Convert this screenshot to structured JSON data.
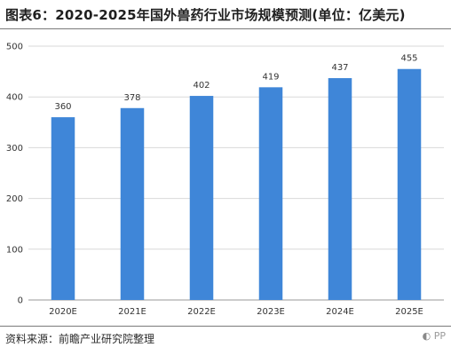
{
  "title": "图表6：2020-2025年国外兽药行业市场规模预测(单位：亿美元)",
  "source": "资料来源：前瞻产业研究院整理",
  "brand_tail": "PP",
  "colors": {
    "bar": "#3f86d8",
    "grid": "#d9d9d9",
    "axis": "#9a9a9a"
  },
  "chart_data": {
    "type": "bar",
    "title": "图表6：2020-2025年国外兽药行业市场规模预测(单位：亿美元)",
    "xlabel": "",
    "ylabel": "",
    "categories": [
      "2020E",
      "2021E",
      "2022E",
      "2023E",
      "2024E",
      "2025E"
    ],
    "values": [
      360,
      378,
      402,
      419,
      437,
      455
    ],
    "ylim": [
      0,
      500
    ],
    "yticks": [
      0,
      100,
      200,
      300,
      400,
      500
    ],
    "grid": true,
    "legend": "none",
    "data_labels": true
  }
}
